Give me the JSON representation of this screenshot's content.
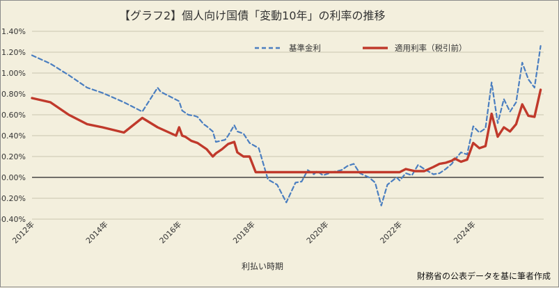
{
  "chart_data": {
    "type": "line",
    "title": "【グラフ2】個人向け国債「変動10年」の利率の推移",
    "xlabel": "利払い時期",
    "source_note": "財務省の公表データを基に筆者作成",
    "x_range": [
      "2012-01",
      "2025-12"
    ],
    "xtick_labels": [
      "2012年",
      "2014年",
      "2016年",
      "2018年",
      "2020年",
      "2022年",
      "2024年"
    ],
    "xtick_years": [
      2012,
      2014,
      2016,
      2018,
      2020,
      2022,
      2024
    ],
    "ylim": [
      -0.4,
      1.4
    ],
    "ytick_values": [
      -0.4,
      -0.2,
      0.0,
      0.2,
      0.4,
      0.6,
      0.8,
      1.0,
      1.2,
      1.4
    ],
    "ytick_labels": [
      "-0.40%",
      "-0.20%",
      "0.00%",
      "0.20%",
      "0.40%",
      "0.60%",
      "0.80%",
      "1.00%",
      "1.20%",
      "1.40%"
    ],
    "grid": true,
    "legend_position": "top-right",
    "series": [
      {
        "name": "基準金利",
        "color": "#4a7ec0",
        "style": "dashed",
        "x": [
          "2012-01",
          "2012-07",
          "2013-01",
          "2013-07",
          "2013-12",
          "2014-07",
          "2015-01",
          "2015-06",
          "2015-07",
          "2016-01",
          "2016-02",
          "2016-04",
          "2016-06",
          "2016-07",
          "2016-09",
          "2016-10",
          "2016-12",
          "2017-01",
          "2017-04",
          "2017-05",
          "2017-07",
          "2017-08",
          "2017-10",
          "2017-12",
          "2018-03",
          "2018-06",
          "2018-09",
          "2018-12",
          "2019-03",
          "2019-05",
          "2019-07",
          "2019-09",
          "2019-10",
          "2019-12",
          "2020-03",
          "2020-06",
          "2020-08",
          "2020-10",
          "2020-12",
          "2021-03",
          "2021-05",
          "2021-07",
          "2021-09",
          "2021-12",
          "2022-01",
          "2022-03",
          "2022-05",
          "2022-07",
          "2022-09",
          "2022-12",
          "2023-02",
          "2023-04",
          "2023-06",
          "2023-07",
          "2023-09",
          "2023-11",
          "2024-01",
          "2024-03",
          "2024-05",
          "2024-07",
          "2024-09",
          "2024-11",
          "2025-01",
          "2025-03",
          "2025-05",
          "2025-07",
          "2025-09",
          "2025-11"
        ],
        "values": [
          1.17,
          1.09,
          0.98,
          0.86,
          0.81,
          0.72,
          0.63,
          0.86,
          0.82,
          0.73,
          0.64,
          0.6,
          0.59,
          0.58,
          0.51,
          0.49,
          0.44,
          0.34,
          0.36,
          0.4,
          0.5,
          0.44,
          0.42,
          0.33,
          0.28,
          -0.02,
          -0.07,
          -0.24,
          -0.05,
          -0.04,
          0.07,
          0.03,
          0.06,
          0.02,
          0.05,
          0.07,
          0.11,
          0.13,
          0.04,
          0.0,
          -0.05,
          -0.27,
          -0.07,
          0.0,
          -0.03,
          0.04,
          0.02,
          0.12,
          0.08,
          0.03,
          0.04,
          0.08,
          0.13,
          0.17,
          0.24,
          0.22,
          0.49,
          0.43,
          0.47,
          0.91,
          0.52,
          0.75,
          0.63,
          0.72,
          1.1,
          0.94,
          0.86,
          1.26
        ]
      },
      {
        "name": "適用利率（税引前）",
        "color": "#c0392b",
        "style": "solid",
        "x": [
          "2012-01",
          "2012-07",
          "2013-01",
          "2013-07",
          "2013-12",
          "2014-07",
          "2015-01",
          "2015-06",
          "2015-12",
          "2016-01",
          "2016-02",
          "2016-03",
          "2016-05",
          "2016-07",
          "2016-09",
          "2016-10",
          "2016-12",
          "2017-01",
          "2017-03",
          "2017-05",
          "2017-07",
          "2017-08",
          "2017-10",
          "2017-12",
          "2018-02",
          "2021-12",
          "2022-01",
          "2022-03",
          "2022-06",
          "2022-09",
          "2022-12",
          "2023-02",
          "2023-04",
          "2023-06",
          "2023-07",
          "2023-09",
          "2023-11",
          "2024-01",
          "2024-03",
          "2024-05",
          "2024-07",
          "2024-09",
          "2024-11",
          "2025-01",
          "2025-03",
          "2025-05",
          "2025-07",
          "2025-09",
          "2025-11"
        ],
        "values": [
          0.76,
          0.72,
          0.6,
          0.51,
          0.48,
          0.43,
          0.57,
          0.48,
          0.4,
          0.48,
          0.4,
          0.39,
          0.35,
          0.33,
          0.29,
          0.27,
          0.2,
          0.23,
          0.27,
          0.32,
          0.34,
          0.24,
          0.2,
          0.2,
          0.05,
          0.05,
          0.05,
          0.08,
          0.06,
          0.06,
          0.1,
          0.13,
          0.14,
          0.16,
          0.18,
          0.15,
          0.17,
          0.33,
          0.28,
          0.3,
          0.61,
          0.39,
          0.48,
          0.44,
          0.51,
          0.7,
          0.59,
          0.58,
          0.84
        ]
      }
    ]
  }
}
